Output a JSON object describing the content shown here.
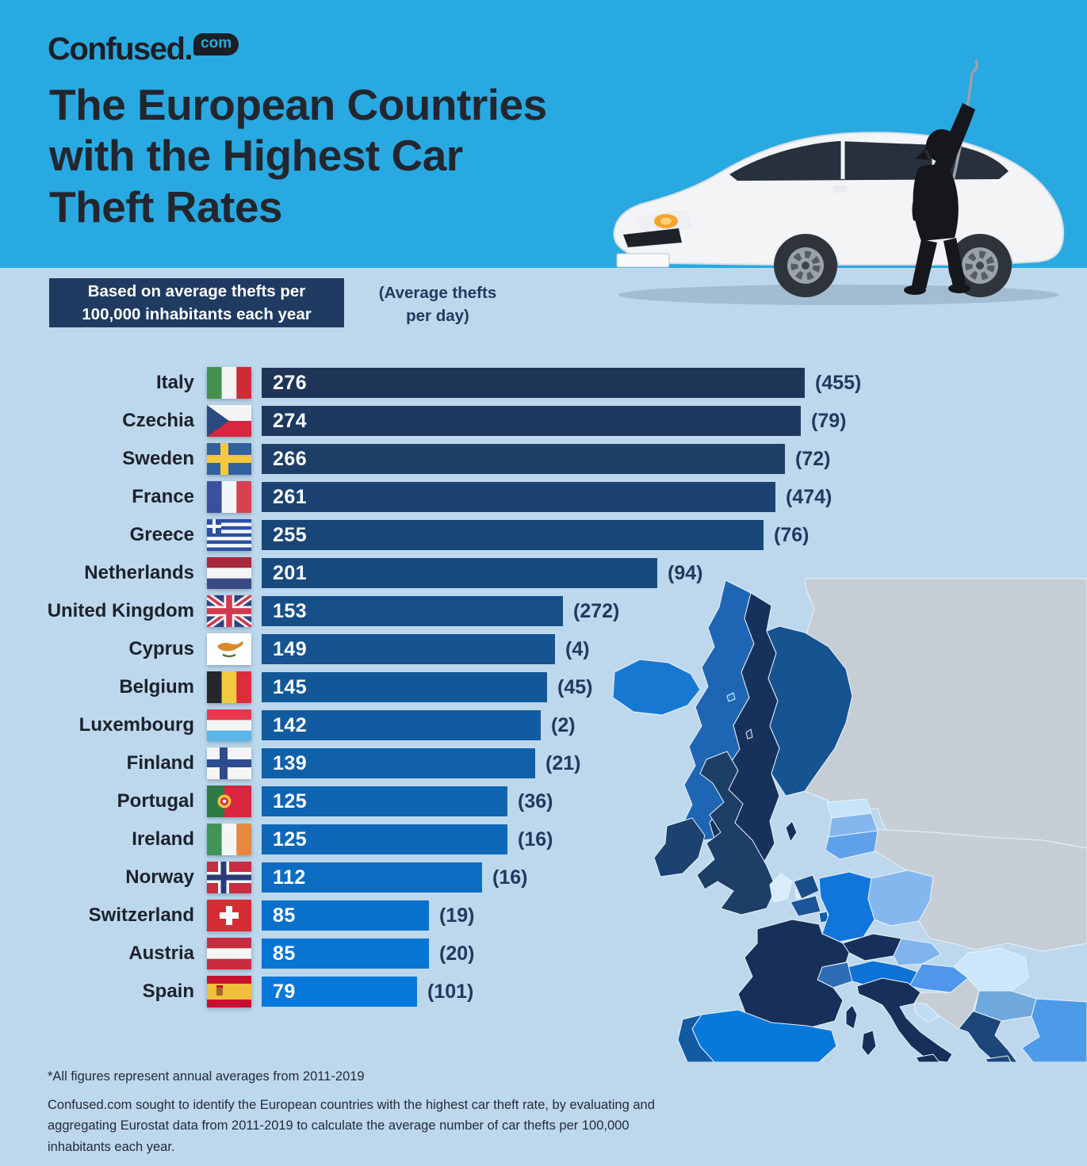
{
  "brand": {
    "logo_text": "Confused.",
    "logo_bubble": "com"
  },
  "header": {
    "title_lines": [
      "The European Countries",
      "with the Highest Car",
      "Theft Rates"
    ]
  },
  "legend": {
    "badge_line1": "Based on average thefts per",
    "badge_line2": "100,000 inhabitants each year",
    "aside_line1": "(Average thefts",
    "aside_line2": "per day)"
  },
  "colors": {
    "header_bg": "#29A9E1",
    "page_bg": "#BDD8EC",
    "badge_bg": "#1F3B61",
    "accent_navy": "#1E3A5F",
    "bar_value_text": "#FFFFFF"
  },
  "chart_data": {
    "type": "bar",
    "title": "The European Countries with the Highest Car Theft Rates",
    "xlabel": "Average thefts per 100,000 inhabitants each year",
    "annotation_label": "Average thefts per day",
    "xlim": [
      0,
      280
    ],
    "grid": false,
    "legend_position": "none",
    "categories": [
      "Italy",
      "Czechia",
      "Sweden",
      "France",
      "Greece",
      "Netherlands",
      "United Kingdom",
      "Cyprus",
      "Belgium",
      "Luxembourg",
      "Finland",
      "Portugal",
      "Ireland",
      "Norway",
      "Switzerland",
      "Austria",
      "Spain"
    ],
    "values": [
      276,
      274,
      266,
      261,
      255,
      201,
      153,
      149,
      145,
      142,
      139,
      125,
      125,
      112,
      85,
      85,
      79
    ],
    "per_day_values": [
      455,
      79,
      72,
      474,
      76,
      94,
      272,
      4,
      45,
      2,
      21,
      36,
      16,
      16,
      19,
      20,
      101
    ],
    "rows": [
      {
        "country": "Italy",
        "flag": "it",
        "value": 276,
        "value_label": "276",
        "per_day": 455,
        "per_day_label": "(455)",
        "bar_color": "#1F3557"
      },
      {
        "country": "Czechia",
        "flag": "cz",
        "value": 274,
        "value_label": "274",
        "per_day": 79,
        "per_day_label": "(79)",
        "bar_color": "#1E395F"
      },
      {
        "country": "Sweden",
        "flag": "se",
        "value": 266,
        "value_label": "266",
        "per_day": 72,
        "per_day_label": "(72)",
        "bar_color": "#1C3E67"
      },
      {
        "country": "France",
        "flag": "fr",
        "value": 261,
        "value_label": "261",
        "per_day": 474,
        "per_day_label": "(474)",
        "bar_color": "#1B4270"
      },
      {
        "country": "Greece",
        "flag": "gr",
        "value": 255,
        "value_label": "255",
        "per_day": 76,
        "per_day_label": "(76)",
        "bar_color": "#194678"
      },
      {
        "country": "Netherlands",
        "flag": "nl",
        "value": 201,
        "value_label": "201",
        "per_day": 94,
        "per_day_label": "(94)",
        "bar_color": "#184A80"
      },
      {
        "country": "United Kingdom",
        "flag": "gb",
        "value": 153,
        "value_label": "153",
        "per_day": 272,
        "per_day_label": "(272)",
        "bar_color": "#164F88"
      },
      {
        "country": "Cyprus",
        "flag": "cy",
        "value": 149,
        "value_label": "149",
        "per_day": 4,
        "per_day_label": "(4)",
        "bar_color": "#155391"
      },
      {
        "country": "Belgium",
        "flag": "be",
        "value": 145,
        "value_label": "145",
        "per_day": 45,
        "per_day_label": "(45)",
        "bar_color": "#135799"
      },
      {
        "country": "Luxembourg",
        "flag": "lu",
        "value": 142,
        "value_label": "142",
        "per_day": 2,
        "per_day_label": "(2)",
        "bar_color": "#125BA1"
      },
      {
        "country": "Finland",
        "flag": "fi",
        "value": 139,
        "value_label": "139",
        "per_day": 21,
        "per_day_label": "(21)",
        "bar_color": "#1060A9"
      },
      {
        "country": "Portugal",
        "flag": "pt",
        "value": 125,
        "value_label": "125",
        "per_day": 36,
        "per_day_label": "(36)",
        "bar_color": "#0F64B2"
      },
      {
        "country": "Ireland",
        "flag": "ie",
        "value": 125,
        "value_label": "125",
        "per_day": 16,
        "per_day_label": "(16)",
        "bar_color": "#0D68BA"
      },
      {
        "country": "Norway",
        "flag": "no",
        "value": 112,
        "value_label": "112",
        "per_day": 16,
        "per_day_label": "(16)",
        "bar_color": "#0C6CC2"
      },
      {
        "country": "Switzerland",
        "flag": "ch",
        "value": 85,
        "value_label": "85",
        "per_day": 19,
        "per_day_label": "(19)",
        "bar_color": "#0A71CA"
      },
      {
        "country": "Austria",
        "flag": "at",
        "value": 85,
        "value_label": "85",
        "per_day": 20,
        "per_day_label": "(20)",
        "bar_color": "#0975D3"
      },
      {
        "country": "Spain",
        "flag": "es",
        "value": 79,
        "value_label": "79",
        "per_day": 101,
        "per_day_label": "(101)",
        "bar_color": "#0779DB"
      }
    ]
  },
  "map": {
    "regions": [
      {
        "id": "russia",
        "color": "#C7CDD5"
      },
      {
        "id": "belarus_ukraine",
        "color": "#C7CDD5"
      },
      {
        "id": "kaliningrad",
        "color": "#C7CDD5"
      },
      {
        "id": "norway",
        "color": "#1E66B3"
      },
      {
        "id": "sweden",
        "color": "#16315C"
      },
      {
        "id": "gotland",
        "color": "#16315C"
      },
      {
        "id": "finland",
        "color": "#155391"
      },
      {
        "id": "iceland",
        "color": "#1778D2"
      },
      {
        "id": "faroe",
        "color": "#1778D2"
      },
      {
        "id": "uk",
        "color": "#1C3E67"
      },
      {
        "id": "shetland",
        "color": "#1C3E67"
      },
      {
        "id": "ireland",
        "color": "#1B4270"
      },
      {
        "id": "denmark",
        "color": "#D8EDFB"
      },
      {
        "id": "denmark_island",
        "color": "#D8EDFB"
      },
      {
        "id": "estonia",
        "color": "#C7E3F8"
      },
      {
        "id": "latvia",
        "color": "#85B7EF"
      },
      {
        "id": "lithuania",
        "color": "#5FA0EA"
      },
      {
        "id": "netherlands",
        "color": "#184E88"
      },
      {
        "id": "belgium",
        "color": "#1C559A"
      },
      {
        "id": "luxembourg",
        "color": "#0E5FAB"
      },
      {
        "id": "germany",
        "color": "#1176D9"
      },
      {
        "id": "poland",
        "color": "#85B7EF"
      },
      {
        "id": "czechia",
        "color": "#17315C"
      },
      {
        "id": "slovakia",
        "color": "#7FB4EE"
      },
      {
        "id": "austria",
        "color": "#0D72D6"
      },
      {
        "id": "switzerland",
        "color": "#2E6CB5"
      },
      {
        "id": "hungary",
        "color": "#4F97EA"
      },
      {
        "id": "france",
        "color": "#16305A"
      },
      {
        "id": "corsica",
        "color": "#16305A"
      },
      {
        "id": "spain",
        "color": "#0779DB"
      },
      {
        "id": "portugal",
        "color": "#125BA1"
      },
      {
        "id": "italy",
        "color": "#16305A"
      },
      {
        "id": "sardinia",
        "color": "#16305A"
      },
      {
        "id": "sicily",
        "color": "#16305A"
      },
      {
        "id": "balkans",
        "color": "#C7CDD5"
      },
      {
        "id": "balkans_pale",
        "color": "#BFDCF5"
      },
      {
        "id": "romania",
        "color": "#CBE6FD"
      },
      {
        "id": "bulgaria",
        "color": "#6FA8DC"
      },
      {
        "id": "greece",
        "color": "#1C4679"
      },
      {
        "id": "crete",
        "color": "#1C4679"
      },
      {
        "id": "turkey",
        "color": "#4D9BE8"
      }
    ]
  },
  "footnotes": {
    "line1": "*All figures represent annual averages from 2011-2019",
    "line2": "Confused.com sought to identify the European countries with the highest car theft rate, by evaluating and aggregating Eurostat data from 2011-2019 to calculate the average number of car thefts per 100,000 inhabitants each year."
  }
}
